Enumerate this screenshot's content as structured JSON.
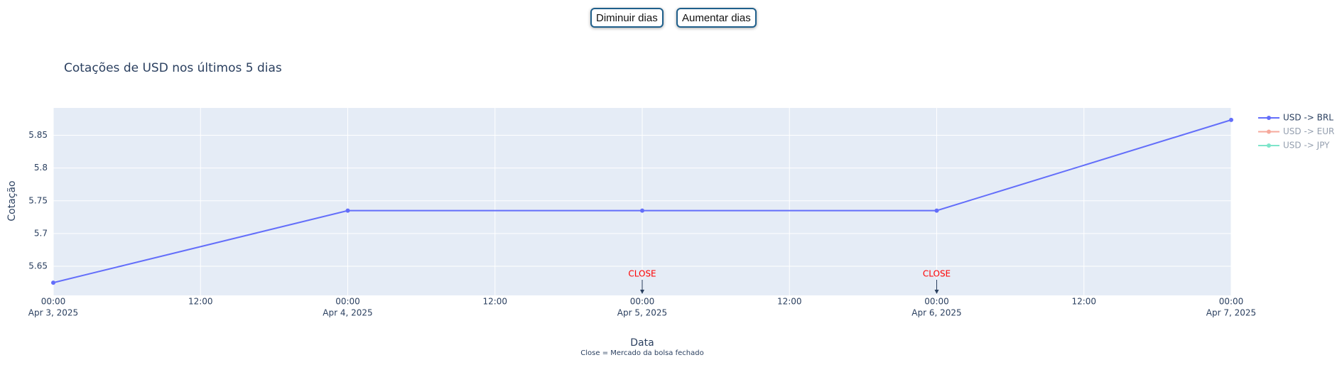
{
  "buttons": [
    "Diminuir dias",
    "Aumentar dias"
  ],
  "chart_data": {
    "type": "line",
    "title": "Cotações de USD nos últimos 5 dias",
    "x_label": "Data",
    "y_label": "Cotação",
    "footnote": "Close = Mercado da bolsa fechado",
    "x": [
      "2025-04-03T00:00",
      "2025-04-04T00:00",
      "2025-04-05T00:00",
      "2025-04-06T00:00",
      "2025-04-07T00:00"
    ],
    "series": [
      {
        "name": "USD -> BRL",
        "color": "#636efa",
        "visible": true,
        "values": [
          5.625,
          5.735,
          5.735,
          5.735,
          5.8735
        ]
      },
      {
        "name": "USD -> EUR",
        "color": "#ef553b",
        "visible": "legendonly",
        "values": [
          null,
          null,
          null,
          null,
          null
        ]
      },
      {
        "name": "USD -> JPY",
        "color": "#00cc96",
        "visible": "legendonly",
        "values": [
          null,
          null,
          null,
          null,
          null
        ]
      }
    ],
    "annotations": [
      {
        "x": "2025-04-05T00:00",
        "text": "CLOSE",
        "color": "#ff0000"
      },
      {
        "x": "2025-04-06T00:00",
        "text": "CLOSE",
        "color": "#ff0000"
      }
    ],
    "xlim": [
      "2025-04-03T00:00",
      "2025-04-07T00:00"
    ],
    "xticks": [
      {
        "value": "2025-04-03T00:00",
        "label": "00:00",
        "date": "Apr 3, 2025"
      },
      {
        "value": "2025-04-03T12:00",
        "label": "12:00"
      },
      {
        "value": "2025-04-04T00:00",
        "label": "00:00",
        "date": "Apr 4, 2025"
      },
      {
        "value": "2025-04-04T12:00",
        "label": "12:00"
      },
      {
        "value": "2025-04-05T00:00",
        "label": "00:00",
        "date": "Apr 5, 2025"
      },
      {
        "value": "2025-04-05T12:00",
        "label": "12:00"
      },
      {
        "value": "2025-04-06T00:00",
        "label": "00:00",
        "date": "Apr 6, 2025"
      },
      {
        "value": "2025-04-06T12:00",
        "label": "12:00"
      },
      {
        "value": "2025-04-07T00:00",
        "label": "00:00",
        "date": "Apr 7, 2025"
      }
    ],
    "ylim": [
      5.6056,
      5.8918
    ],
    "yticks": [
      5.65,
      5.7,
      5.75,
      5.8,
      5.85
    ],
    "grid": true,
    "legend": "right"
  }
}
